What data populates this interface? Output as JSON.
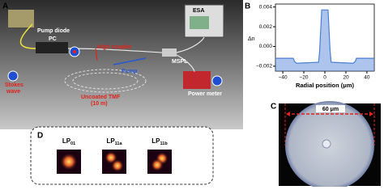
{
  "panel_a": {
    "letter": "A",
    "labels": {
      "pump_diode": "Pump diode",
      "pc": "PC",
      "coupler": "High coupler",
      "pump": "Pump",
      "mspl": "MSPL",
      "esa": "ESA",
      "stokes": [
        "Stokes",
        "wave"
      ],
      "tmf": [
        "Uncoated TMF",
        "(10 m)"
      ],
      "power_meter": "Power meter"
    }
  },
  "chart_data": {
    "type": "area",
    "letter": "B",
    "ylabel": "Δn",
    "xlabel": "Radial position (μm)",
    "x": [
      -47,
      -30,
      -29,
      -27,
      -6,
      -5,
      -3,
      3,
      5,
      6,
      27,
      29,
      30,
      47
    ],
    "values": [
      -0.0012,
      -0.0012,
      -0.0015,
      -0.0017,
      -0.0016,
      -0.0005,
      0.0037,
      0.0037,
      -0.0005,
      -0.0016,
      -0.0017,
      -0.0015,
      -0.0012,
      -0.0012
    ],
    "color": "#4a7fd4",
    "xlim": [
      -47,
      47
    ],
    "ylim": [
      -0.0025,
      0.0043
    ],
    "xticks": [
      {
        "value": -40,
        "label": "−40"
      },
      {
        "value": -20,
        "label": "−20"
      },
      0,
      20,
      40
    ],
    "yticks": [
      {
        "value": -0.002,
        "label": "−0.002"
      },
      {
        "value": 0,
        "label": "0.000"
      },
      0.002,
      0.004
    ]
  },
  "panel_c": {
    "letter": "C",
    "scale": "60 μm"
  },
  "panel_d": {
    "letter": "D",
    "modes": [
      {
        "main": "LP",
        "sub": "01"
      },
      {
        "main": "LP",
        "sub": "11a"
      },
      {
        "main": "LP",
        "sub": "11b"
      }
    ]
  }
}
